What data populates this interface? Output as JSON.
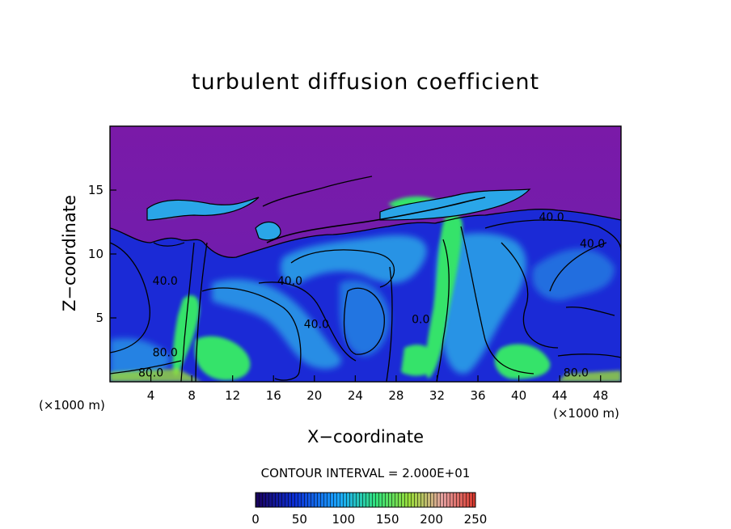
{
  "chart_data": {
    "type": "heatmap",
    "title": "turbulent diffusion coefficient",
    "xlabel": "X−coordinate",
    "ylabel": "Z−coordinate",
    "x_unit": "(×1000 m)",
    "y_unit": "(×1000 m)",
    "xlim": [
      0,
      50
    ],
    "ylim": [
      0,
      20
    ],
    "x_ticks": [
      4,
      8,
      12,
      16,
      20,
      24,
      28,
      32,
      36,
      40,
      44,
      48
    ],
    "y_ticks": [
      5,
      10,
      15
    ],
    "contour_interval_label": "CONTOUR INTERVAL = 2.000E+01",
    "contour_labels": [
      {
        "text": "40.0",
        "x": 43.2,
        "z": 12.6
      },
      {
        "text": "40.0",
        "x": 47.2,
        "z": 10.5
      },
      {
        "text": "40.0",
        "x": 17.6,
        "z": 7.6
      },
      {
        "text": "40.0",
        "x": 20.2,
        "z": 4.2
      },
      {
        "text": "40.0",
        "x": 5.4,
        "z": 7.6
      },
      {
        "text": "80.0",
        "x": 5.4,
        "z": 2.0
      },
      {
        "text": "80.0",
        "x": 4.0,
        "z": 0.4
      },
      {
        "text": "80.0",
        "x": 45.6,
        "z": 0.4
      },
      {
        "text": "0.0",
        "x": 30.4,
        "z": 4.6
      }
    ],
    "colorbar": {
      "range": [
        0,
        250
      ],
      "ticks": [
        0,
        50,
        100,
        150,
        200,
        250
      ],
      "colors": [
        "#1a005a",
        "#0b2fd6",
        "#1aa8ff",
        "#33e27a",
        "#9adc3a",
        "#e5a0a0",
        "#d7352a"
      ]
    },
    "colors": {
      "background": "#7a1aa8",
      "low": "#1b2ad6",
      "mid": "#2aa6e8",
      "high": "#36e36b"
    }
  }
}
